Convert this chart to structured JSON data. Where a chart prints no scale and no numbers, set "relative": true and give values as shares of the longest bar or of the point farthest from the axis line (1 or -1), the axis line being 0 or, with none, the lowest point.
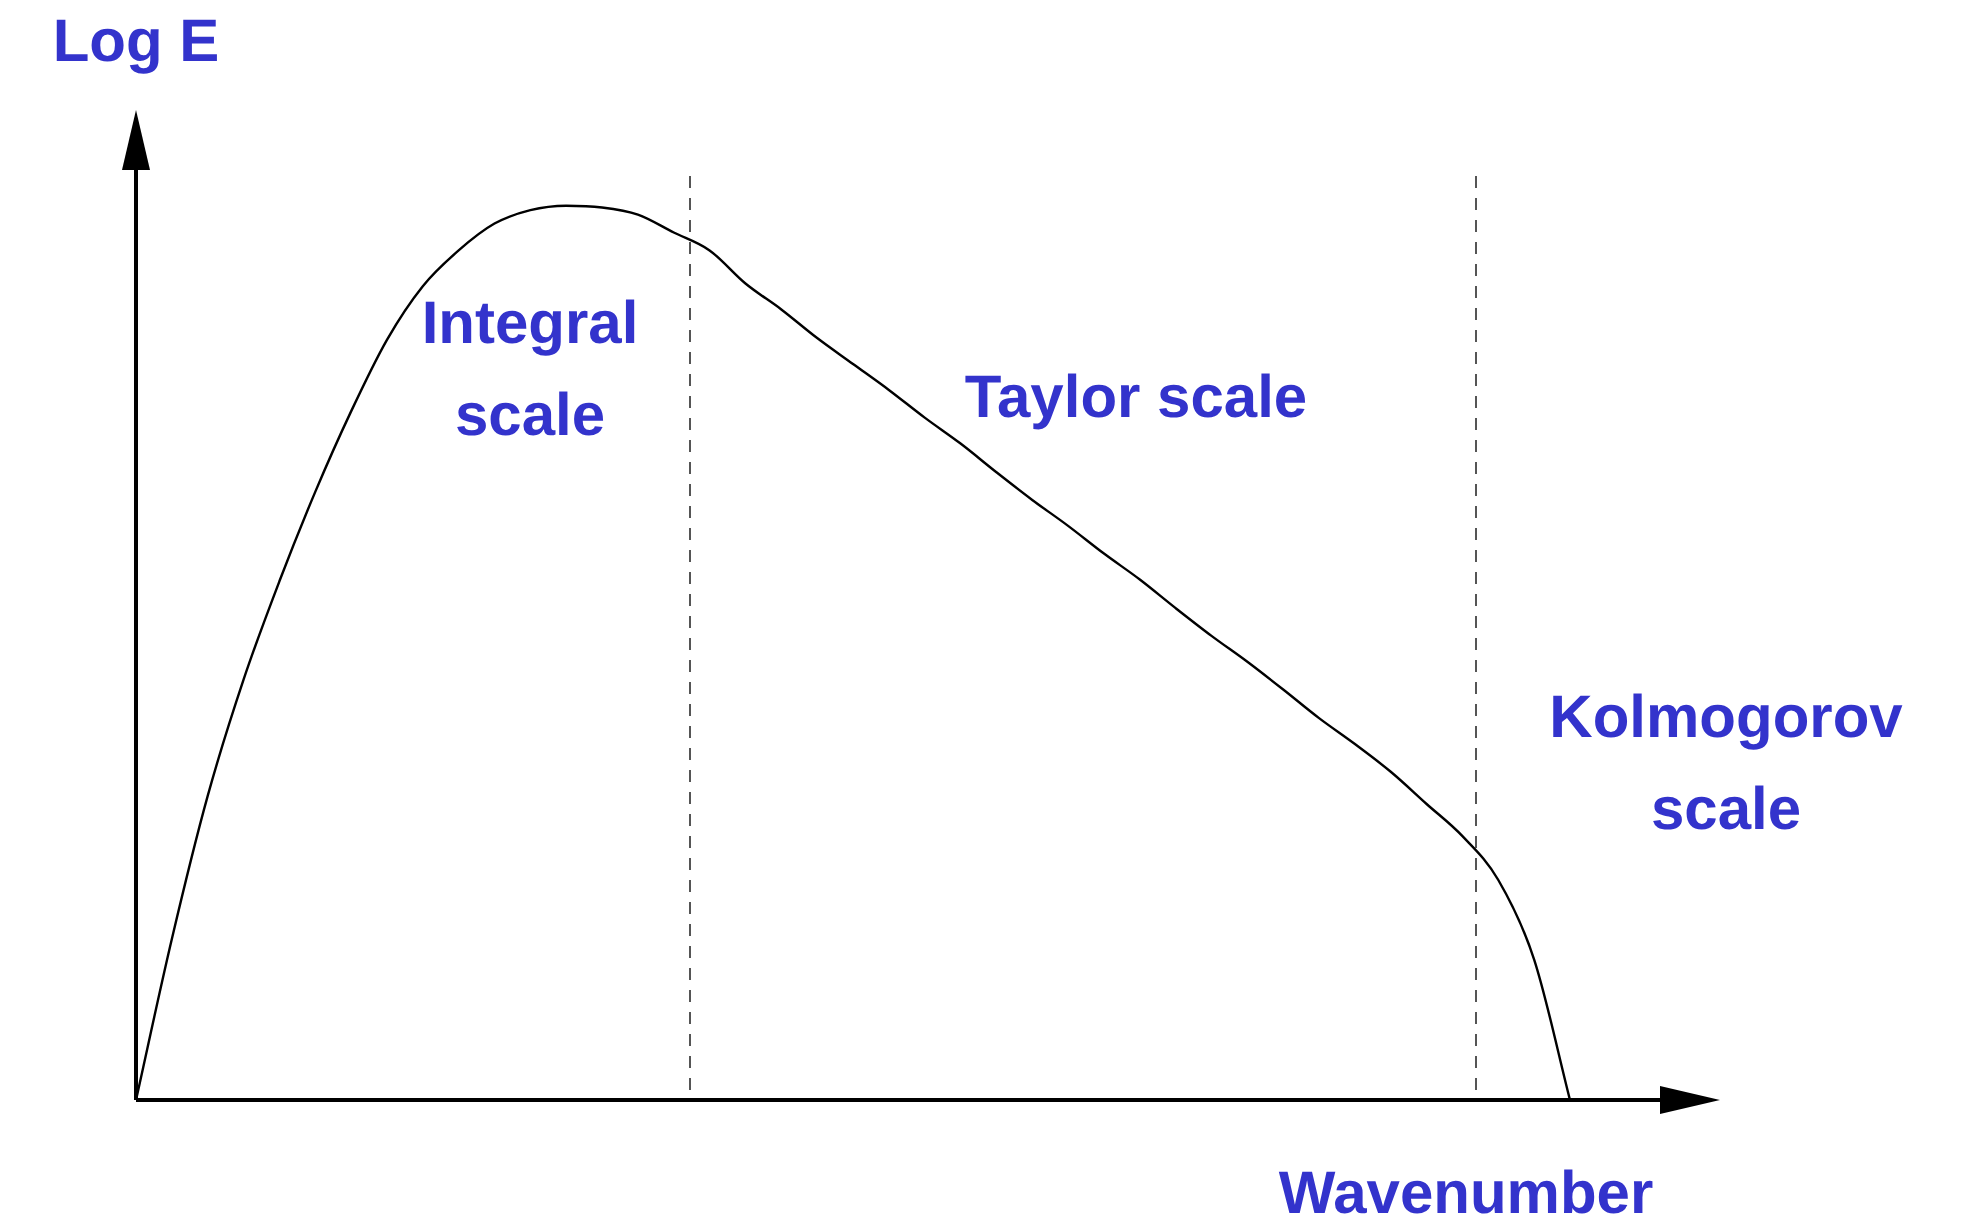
{
  "chart_data": {
    "type": "line",
    "relative": true,
    "xlabel": "Wavenumber",
    "ylabel": "Log E",
    "marker": "none",
    "color": "#000000",
    "categories": [
      null,
      null,
      null,
      null,
      null,
      null,
      null,
      null,
      null,
      null,
      null,
      null,
      null,
      null,
      null,
      null,
      null,
      null,
      null,
      null,
      null,
      null,
      null,
      null,
      null,
      null,
      null,
      null,
      null,
      null,
      null,
      null,
      null,
      null,
      null,
      null,
      null,
      null,
      null,
      null,
      null
    ],
    "values": [
      0,
      0.18,
      0.34,
      0.47,
      0.58,
      0.68,
      0.77,
      0.85,
      0.91,
      0.95,
      0.98,
      0.995,
      1,
      0.998,
      0.99,
      0.97,
      0.95,
      0.913,
      0.884,
      0.852,
      0.823,
      0.794,
      0.763,
      0.734,
      0.702,
      0.671,
      0.642,
      0.611,
      0.582,
      0.55,
      0.519,
      0.49,
      0.459,
      0.427,
      0.398,
      0.367,
      0.331,
      0.295,
      0.246,
      0.157,
      0
    ],
    "annotations": [
      "Integral scale",
      "Taylor scale",
      "Kolmogorov scale"
    ]
  }
}
